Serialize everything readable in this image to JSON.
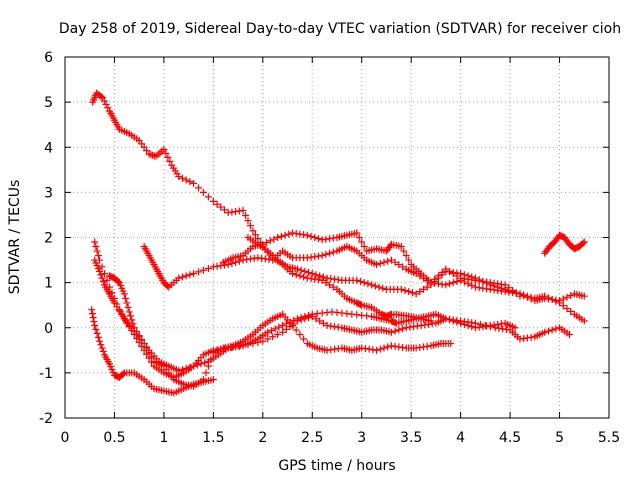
{
  "chart_data": {
    "type": "scatter",
    "title": "Day 258 of 2019, Sidereal Day-to-day VTEC variation (SDTVAR) for receiver cioh",
    "xlabel": "GPS time / hours",
    "ylabel": "SDTVAR / TECUs",
    "xlim": [
      0,
      5.5
    ],
    "ylim": [
      -2,
      6
    ],
    "xticks": [
      0,
      0.5,
      1,
      1.5,
      2,
      2.5,
      3,
      3.5,
      4,
      4.5,
      5,
      5.5
    ],
    "xtick_labels": [
      "0",
      "0.5",
      "1",
      "1.5",
      "2",
      "2.5",
      "3",
      "3.5",
      "4",
      "4.5",
      "5",
      "5.5"
    ],
    "yticks": [
      -2,
      -1,
      0,
      1,
      2,
      3,
      4,
      5,
      6
    ],
    "ytick_labels": [
      "-2",
      "-1",
      "0",
      "1",
      "2",
      "3",
      "4",
      "5",
      "6"
    ],
    "grid": true,
    "marker": "+",
    "color": "#ff0000",
    "series": [
      {
        "name": "s1",
        "x": [
          0.28,
          0.32,
          0.38,
          0.45,
          0.5,
          0.55,
          0.65,
          0.75,
          0.85,
          0.92,
          1.0,
          1.08,
          1.15,
          1.3,
          1.5,
          1.65,
          1.8,
          1.9,
          2.0,
          2.1,
          2.2,
          2.3,
          2.45,
          2.6,
          2.75,
          2.85,
          2.95,
          3.0,
          3.1,
          3.2,
          3.25,
          3.3,
          3.4,
          3.5,
          3.6,
          3.7
        ],
        "y": [
          5.0,
          5.2,
          5.1,
          4.8,
          4.6,
          4.4,
          4.3,
          4.15,
          3.85,
          3.8,
          3.95,
          3.6,
          3.35,
          3.2,
          2.8,
          2.55,
          2.6,
          2.15,
          1.8,
          1.55,
          1.4,
          1.2,
          1.1,
          1.05,
          0.85,
          0.65,
          0.55,
          0.5,
          0.45,
          0.3,
          0.25,
          0.3,
          0.28,
          0.25,
          0.2,
          0.15
        ]
      },
      {
        "name": "s2",
        "x": [
          0.3,
          0.35,
          0.45,
          0.55,
          0.6,
          0.65,
          0.75,
          0.85,
          0.95,
          1.05,
          1.15,
          1.3,
          1.45,
          1.55,
          1.65,
          1.75,
          1.85,
          1.95,
          2.05,
          2.2,
          2.35,
          2.5,
          2.7,
          2.9,
          3.1,
          3.2,
          3.3,
          3.35,
          3.45,
          3.55,
          3.65,
          3.75,
          3.85,
          4.0,
          4.15,
          4.3,
          4.45,
          4.55
        ],
        "y": [
          1.9,
          1.5,
          0.9,
          0.4,
          0.2,
          0.05,
          -0.2,
          -0.5,
          -0.75,
          -0.85,
          -0.95,
          -0.85,
          -0.75,
          -0.6,
          -0.45,
          -0.4,
          -0.35,
          -0.25,
          -0.1,
          0.05,
          0.2,
          0.3,
          0.35,
          0.3,
          0.25,
          0.2,
          0.15,
          0.1,
          0.15,
          0.2,
          0.25,
          0.3,
          0.2,
          0.1,
          0.0,
          0.05,
          0.1,
          0.0
        ]
      },
      {
        "name": "s3",
        "x": [
          0.3,
          0.35,
          0.4,
          0.45,
          0.5,
          0.6,
          0.7,
          0.8,
          0.9,
          1.0,
          1.1,
          1.2,
          1.3,
          1.4,
          1.5,
          1.65,
          1.8,
          2.0,
          2.2,
          2.35,
          2.5,
          2.65,
          2.8,
          2.9,
          3.0,
          3.1,
          3.2,
          3.3,
          3.45,
          3.6,
          3.75,
          3.85,
          4.0,
          4.15,
          4.35,
          4.5,
          4.6,
          4.75,
          4.85,
          5.0,
          5.1
        ],
        "y": [
          1.5,
          1.25,
          0.95,
          0.75,
          0.55,
          0.2,
          -0.15,
          -0.5,
          -0.85,
          -1.0,
          -1.1,
          -1.0,
          -0.85,
          -0.6,
          -0.5,
          -0.45,
          -0.4,
          -0.3,
          -0.1,
          0.15,
          0.25,
          0.05,
          0.0,
          -0.05,
          -0.1,
          -0.05,
          -0.05,
          -0.1,
          -0.0,
          0.05,
          0.1,
          0.2,
          0.15,
          0.1,
          0.0,
          -0.05,
          -0.25,
          -0.2,
          -0.1,
          0.0,
          -0.15
        ]
      },
      {
        "name": "s4",
        "x": [
          0.27,
          0.3,
          0.35,
          0.4,
          0.45,
          0.5,
          0.55,
          0.6,
          0.7,
          0.8,
          0.9,
          1.0,
          1.1,
          1.2,
          1.3,
          1.4,
          1.5
        ],
        "y": [
          0.4,
          0.05,
          -0.3,
          -0.6,
          -0.8,
          -1.05,
          -1.1,
          -1.0,
          -1.0,
          -1.15,
          -1.35,
          -1.4,
          -1.45,
          -1.35,
          -1.25,
          -1.2,
          -1.15
        ]
      },
      {
        "name": "s5",
        "x": [
          0.45,
          0.5,
          0.55,
          0.6,
          0.65,
          0.7,
          0.8,
          0.9,
          1.0,
          1.1,
          1.2,
          1.3,
          1.4,
          1.5,
          1.6,
          1.7,
          1.8,
          1.9,
          2.0,
          2.1,
          2.2,
          2.3,
          2.45,
          2.55,
          2.65,
          2.8,
          2.9,
          3.0,
          3.15,
          3.3,
          3.45,
          3.55,
          3.7,
          3.8,
          3.9
        ],
        "y": [
          1.15,
          1.1,
          1.0,
          0.75,
          0.35,
          0.0,
          -0.35,
          -0.75,
          -0.85,
          -1.15,
          -1.25,
          -1.3,
          -1.15,
          -0.55,
          -0.45,
          -0.4,
          -0.3,
          -0.15,
          0.05,
          0.2,
          0.3,
          0.05,
          -0.35,
          -0.45,
          -0.5,
          -0.45,
          -0.5,
          -0.45,
          -0.5,
          -0.4,
          -0.45,
          -0.45,
          -0.4,
          -0.35,
          -0.35
        ]
      },
      {
        "name": "s6",
        "x": [
          0.8,
          0.85,
          0.9,
          0.95,
          1.0,
          1.05,
          1.15,
          1.3,
          1.5,
          1.65,
          1.8,
          1.95,
          2.1,
          2.2,
          2.3,
          2.45,
          2.6,
          2.75,
          2.85,
          2.95,
          3.05,
          3.15,
          3.3,
          3.45,
          3.55,
          3.7,
          3.85,
          4.0,
          4.15,
          4.3,
          4.45,
          4.6,
          4.75,
          4.85,
          5.0,
          5.15,
          5.25
        ],
        "y": [
          1.8,
          1.6,
          1.4,
          1.2,
          1.0,
          0.9,
          1.1,
          1.2,
          1.35,
          1.4,
          1.5,
          1.55,
          1.5,
          1.7,
          1.55,
          1.55,
          1.6,
          1.7,
          1.8,
          1.7,
          1.5,
          1.4,
          1.5,
          1.3,
          1.2,
          1.0,
          0.95,
          1.05,
          0.9,
          0.85,
          0.8,
          0.75,
          0.6,
          0.65,
          0.6,
          0.75,
          0.7
        ]
      },
      {
        "name": "s7",
        "x": [
          1.6,
          1.7,
          1.8,
          1.9,
          2.0,
          2.15,
          2.3,
          2.45,
          2.6,
          2.75,
          2.85,
          2.95,
          3.05,
          3.15,
          3.25,
          3.3,
          3.4,
          3.5,
          3.6,
          3.7,
          3.85,
          4.0,
          4.15,
          4.3,
          4.45,
          4.6
        ],
        "y": [
          1.45,
          1.55,
          1.6,
          1.8,
          1.85,
          2.0,
          2.1,
          2.05,
          1.95,
          2.0,
          2.05,
          2.1,
          1.7,
          1.75,
          1.7,
          1.85,
          1.8,
          1.4,
          1.2,
          1.0,
          1.3,
          1.1,
          1.05,
          1.0,
          0.95,
          0.7
        ]
      },
      {
        "name": "s8",
        "x": [
          1.85,
          1.95,
          2.05,
          2.15,
          2.25,
          2.35,
          2.5,
          2.65,
          2.8,
          2.95,
          3.1,
          3.25,
          3.4,
          3.55,
          3.7,
          3.85,
          4.0,
          4.15,
          4.3,
          4.45,
          4.6,
          4.75,
          4.85,
          5.0,
          5.15,
          5.25
        ],
        "y": [
          2.0,
          1.85,
          1.7,
          1.5,
          1.35,
          1.3,
          1.2,
          1.1,
          1.05,
          1.05,
          0.95,
          0.85,
          0.85,
          0.75,
          0.95,
          1.25,
          1.2,
          1.1,
          0.95,
          0.85,
          0.75,
          0.65,
          0.7,
          0.55,
          0.3,
          0.15
        ]
      },
      {
        "name": "s9",
        "x": [
          4.85,
          4.9,
          4.95,
          5.0,
          5.05,
          5.1,
          5.15,
          5.2,
          5.25
        ],
        "y": [
          1.65,
          1.8,
          1.9,
          2.05,
          2.0,
          1.85,
          1.75,
          1.8,
          1.9
        ]
      }
    ]
  }
}
